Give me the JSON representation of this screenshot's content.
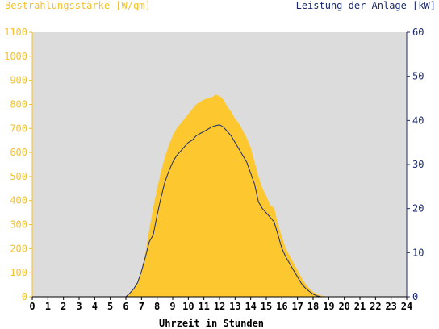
{
  "chart_data": {
    "type": "area",
    "title_left": "Bestrahlungsstärke [W/qm]",
    "title_right": "Leistung der Anlage [kW]",
    "xlabel": "Uhrzeit in Stunden",
    "x_ticks": [
      "0",
      "1",
      "2",
      "3",
      "4",
      "5",
      "6",
      "7",
      "8",
      "9",
      "10",
      "11",
      "12",
      "13",
      "14",
      "15",
      "16",
      "17",
      "18",
      "19",
      "20",
      "21",
      "22",
      "23",
      "24"
    ],
    "y_left_ticks": [
      "0",
      "100",
      "200",
      "300",
      "400",
      "500",
      "600",
      "700",
      "800",
      "900",
      "1000",
      "1100"
    ],
    "y_right_ticks": [
      "0",
      "10",
      "20",
      "30",
      "40",
      "50",
      "60"
    ],
    "xlim": [
      0,
      24
    ],
    "ylim_left": [
      0,
      1100
    ],
    "ylim_right": [
      0,
      60
    ],
    "grid": false,
    "colors": {
      "plot_bg": "#dcdcdc",
      "irradiance_fill": "#fdc82f",
      "power_line": "#1b2a6b",
      "left_axis": "#f5c12e",
      "right_axis": "#1b2a6b"
    },
    "series": [
      {
        "axis": "left",
        "kind": "area",
        "x": [
          0,
          6,
          6.25,
          6.5,
          6.75,
          7,
          7.25,
          7.5,
          7.75,
          8,
          8.25,
          8.5,
          8.75,
          9,
          9.25,
          9.5,
          9.75,
          10,
          10.25,
          10.5,
          10.75,
          11,
          11.25,
          11.5,
          11.75,
          12,
          12.25,
          12.5,
          12.75,
          13,
          13.25,
          13.5,
          13.75,
          14,
          14.25,
          14.5,
          14.75,
          15,
          15.25,
          15.5,
          15.75,
          16,
          16.25,
          16.5,
          16.75,
          17,
          17.25,
          17.5,
          17.75,
          18,
          18.25,
          18.5,
          18.75,
          19,
          24
        ],
        "values": [
          0,
          0,
          15,
          35,
          60,
          110,
          180,
          280,
          370,
          450,
          520,
          580,
          630,
          670,
          700,
          720,
          740,
          760,
          780,
          800,
          810,
          820,
          825,
          830,
          840,
          835,
          820,
          790,
          770,
          740,
          720,
          690,
          660,
          620,
          560,
          500,
          450,
          420,
          380,
          370,
          300,
          250,
          200,
          170,
          140,
          110,
          80,
          55,
          35,
          20,
          10,
          5,
          2,
          0,
          0
        ]
      },
      {
        "axis": "right",
        "kind": "line",
        "x": [
          0,
          6,
          6.25,
          6.5,
          6.75,
          7,
          7.25,
          7.5,
          7.75,
          8,
          8.25,
          8.5,
          8.75,
          9,
          9.25,
          9.5,
          9.75,
          10,
          10.25,
          10.5,
          10.75,
          11,
          11.25,
          11.5,
          11.75,
          12,
          12.25,
          12.5,
          12.75,
          13,
          13.25,
          13.5,
          13.75,
          14,
          14.25,
          14.5,
          14.75,
          15,
          15.25,
          15.5,
          15.75,
          16,
          16.25,
          16.5,
          16.75,
          17,
          17.25,
          17.5,
          17.75,
          18,
          18.25,
          18.5,
          18.75,
          19,
          24
        ],
        "values": [
          0,
          0,
          0.8,
          1.8,
          3.2,
          5.8,
          9,
          12.5,
          14,
          18.5,
          22.5,
          26,
          28.5,
          30.5,
          32,
          33,
          34,
          35,
          35.5,
          36.5,
          37,
          37.5,
          38,
          38.5,
          38.8,
          39,
          38.5,
          37.5,
          36.5,
          35,
          33.5,
          32,
          30.5,
          28,
          25.5,
          21.5,
          20,
          19,
          18,
          17,
          14,
          11,
          9,
          7.5,
          6,
          4.5,
          3,
          2,
          1.2,
          0.6,
          0.2,
          0,
          0,
          0,
          0
        ]
      }
    ]
  }
}
